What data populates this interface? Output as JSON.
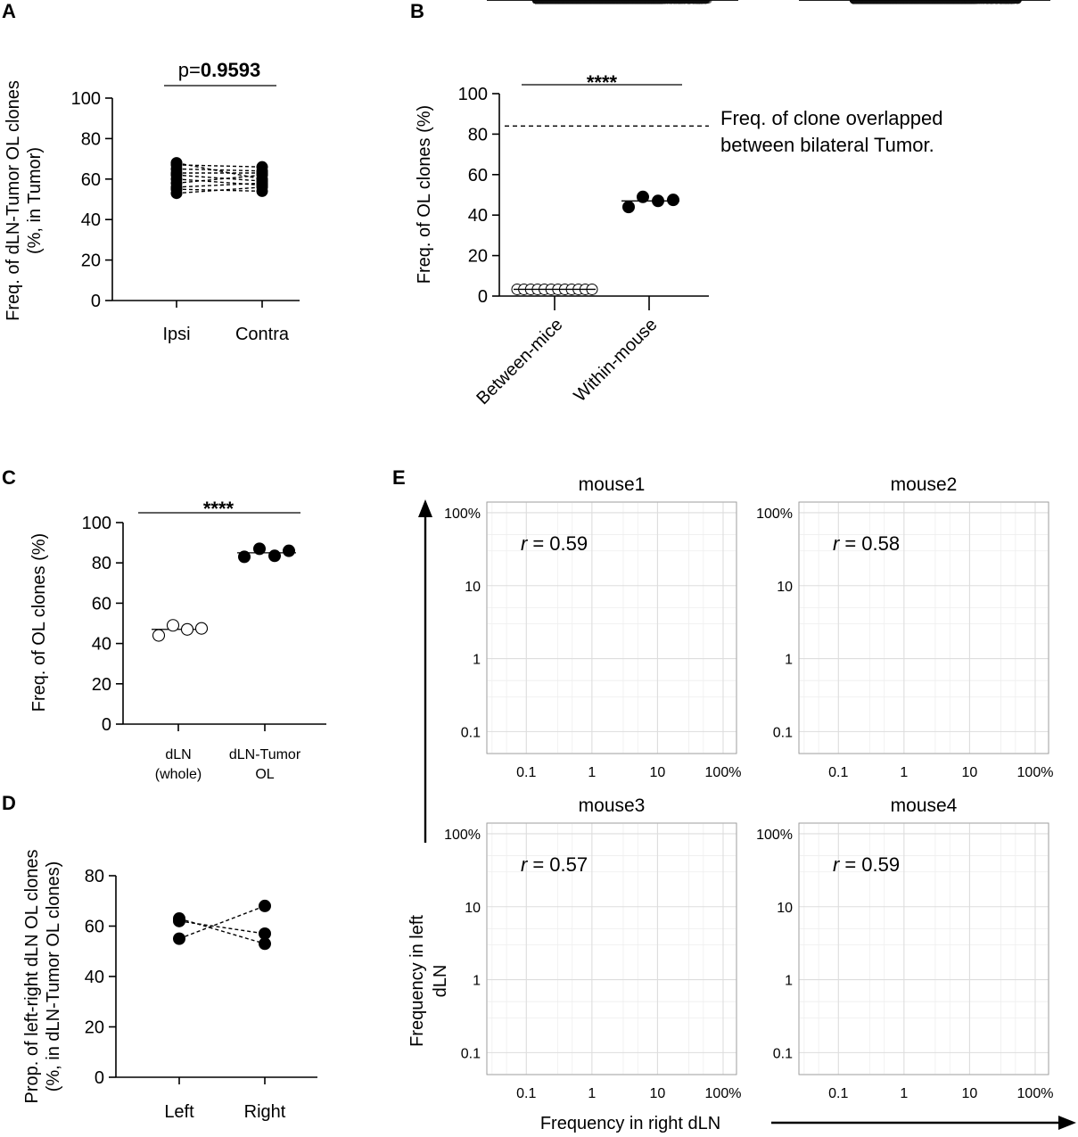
{
  "chart_data": [
    {
      "panel": "A",
      "type": "scatter",
      "subtype": "paired",
      "ylabel_lines": [
        "Freq. of dLN-Tumor OL clones",
        "(%, in Tumor)"
      ],
      "categories": [
        "Ipsi",
        "Contra"
      ],
      "ylim": [
        0,
        100
      ],
      "yticks": [
        0,
        20,
        40,
        60,
        80,
        100
      ],
      "annotation_prefix": "p=",
      "annotation_value": "0.9593",
      "pairs": [
        [
          53,
          56
        ],
        [
          55,
          54
        ],
        [
          58,
          62
        ],
        [
          60,
          57
        ],
        [
          62,
          59
        ],
        [
          63,
          63
        ],
        [
          65,
          64
        ],
        [
          67,
          66
        ],
        [
          68,
          60
        ],
        [
          56,
          58
        ]
      ]
    },
    {
      "panel": "B",
      "type": "scatter",
      "subtype": "dot",
      "ylabel": "Freq. of OL clones (%)",
      "categories": [
        "Between-mice",
        "Within-mouse"
      ],
      "ylim": [
        0,
        100
      ],
      "yticks": [
        0,
        20,
        40,
        60,
        80,
        100
      ],
      "significance": "****",
      "reference_line": 84,
      "reference_label": [
        "Freq. of clone overlapped",
        "between bilateral Tumor."
      ],
      "groups": [
        {
          "name": "Between-mice",
          "style": "open",
          "values": [
            2,
            2,
            2,
            2,
            2,
            2,
            2,
            2,
            2,
            2,
            2,
            2
          ],
          "mean": 2
        },
        {
          "name": "Within-mouse",
          "style": "filled",
          "values": [
            44,
            49,
            47,
            47.5
          ],
          "mean": 47
        }
      ]
    },
    {
      "panel": "C",
      "type": "scatter",
      "subtype": "dot",
      "ylabel": "Freq. of OL clones (%)",
      "categories": [
        [
          "dLN",
          "(whole)"
        ],
        [
          "dLN-Tumor",
          "OL"
        ]
      ],
      "ylim": [
        0,
        100
      ],
      "yticks": [
        0,
        20,
        40,
        60,
        80,
        100
      ],
      "significance": "****",
      "groups": [
        {
          "name": "dLN (whole)",
          "style": "open",
          "values": [
            44,
            49,
            47,
            47.5
          ],
          "mean": 47
        },
        {
          "name": "dLN-Tumor OL",
          "style": "filled",
          "values": [
            83,
            87,
            83.5,
            86
          ],
          "mean": 85
        }
      ]
    },
    {
      "panel": "D",
      "type": "scatter",
      "subtype": "paired",
      "ylabel_lines": [
        "Prop. of left-right dLN OL clones",
        "(%, in dLN-Tumor OL clones)"
      ],
      "categories": [
        "Left",
        "Right"
      ],
      "ylim": [
        0,
        80
      ],
      "yticks": [
        0,
        20,
        40,
        60,
        80
      ],
      "pairs": [
        [
          55,
          68
        ],
        [
          62,
          57
        ],
        [
          63,
          53
        ]
      ]
    },
    {
      "panel": "E",
      "type": "scatter",
      "xlabel": "Frequency in right dLN",
      "ylabel_lines": [
        "Frequency in left",
        "dLN"
      ],
      "scale": "log",
      "xlim": [
        0.025,
        160
      ],
      "ylim": [
        0.05,
        140
      ],
      "ticks": [
        0.1,
        1,
        10,
        100
      ],
      "tick_labels": [
        "0.1",
        "1",
        "10",
        "100%"
      ],
      "r_label": "r",
      "subplots": [
        {
          "title": "mouse1",
          "r_value": "= 0.59",
          "fit": {
            "slope": 0.59,
            "intercept": 0.2
          },
          "min_x": 0.3,
          "min_y": 0.25,
          "max_x": 60,
          "max_y": 60,
          "n_points": 1400,
          "spread": 0.42
        },
        {
          "title": "mouse2",
          "r_value": "= 0.58",
          "fit": {
            "slope": 0.58,
            "intercept": 0.28
          },
          "min_x": 0.17,
          "min_y": 0.15,
          "max_x": 55,
          "max_y": 40,
          "n_points": 2600,
          "spread": 0.4
        },
        {
          "title": "mouse3",
          "r_value": "= 0.57",
          "fit": {
            "slope": 0.57,
            "intercept": 0.18
          },
          "min_x": 0.14,
          "min_y": 0.13,
          "max_x": 55,
          "max_y": 55,
          "n_points": 3200,
          "spread": 0.4
        },
        {
          "title": "mouse4",
          "r_value": "= 0.59",
          "fit": {
            "slope": 0.58,
            "intercept": 0.25
          },
          "min_x": 0.18,
          "min_y": 0.15,
          "max_x": 45,
          "max_y": 60,
          "n_points": 2600,
          "spread": 0.4
        }
      ]
    }
  ]
}
